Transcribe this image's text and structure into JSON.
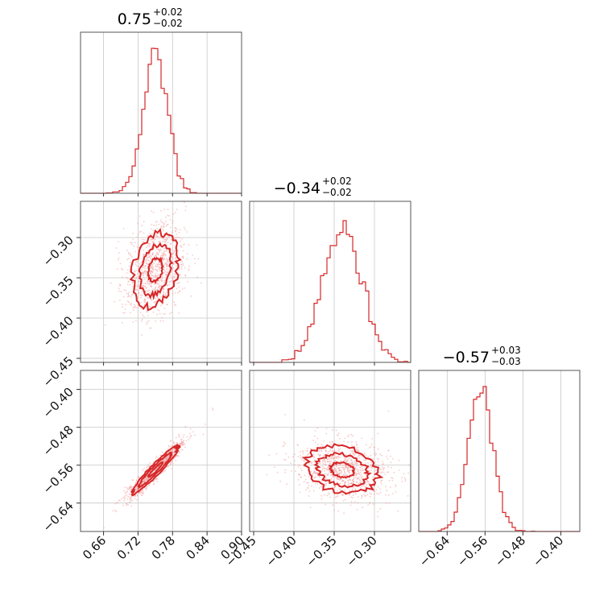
{
  "colors": {
    "accent": "#d62728",
    "contour_fill_outer": "#f7c6c7",
    "contour_fill_mid": "#ee9a9c",
    "contour_fill_inner": "#e25d62",
    "sample_points": "#f2a0a0",
    "grid": "#c8c8c8",
    "frame": "#555555"
  },
  "chart_data": {
    "type": "corner",
    "parameters": [
      {
        "index": 0,
        "median": 0.75,
        "err_plus": 0.02,
        "err_minus": 0.02,
        "title": {
          "value": "0.75",
          "upper": "+0.02",
          "lower": "−0.02"
        },
        "range": [
          0.62,
          0.9
        ],
        "ticks": [
          0.66,
          0.72,
          0.78,
          0.84,
          0.9
        ],
        "tick_labels": [
          "0.66",
          "0.72",
          "0.78",
          "0.84",
          "0.90"
        ],
        "hist_sigma": 0.021,
        "hist_peak_height": 0.9
      },
      {
        "index": 1,
        "median": -0.34,
        "err_plus": 0.02,
        "err_minus": 0.02,
        "title": {
          "value": "−0.34",
          "upper": "+0.02",
          "lower": "−0.02"
        },
        "range": [
          -0.455,
          -0.255
        ],
        "ticks": [
          -0.45,
          -0.4,
          -0.35,
          -0.3
        ],
        "tick_labels": [
          "−0.45",
          "−0.40",
          "−0.35",
          "−0.30"
        ],
        "hist_sigma": 0.024,
        "hist_peak_height": 0.88
      },
      {
        "index": 2,
        "median": -0.57,
        "err_plus": 0.03,
        "err_minus": 0.03,
        "title": {
          "value": "−0.57",
          "upper": "+0.03",
          "lower": "−0.03"
        },
        "range": [
          -0.7,
          -0.36
        ],
        "ticks": [
          -0.64,
          -0.56,
          -0.48,
          -0.4
        ],
        "tick_labels": [
          "−0.64",
          "−0.56",
          "−0.48",
          "−0.40"
        ],
        "hist_sigma": 0.026,
        "hist_peak_height": 0.9
      }
    ],
    "correlations": {
      "0-1": 0.25,
      "0-2": 0.95,
      "1-2": -0.2
    },
    "contour_levels": [
      "1-sigma",
      "2-sigma",
      "3-sigma"
    ],
    "grid": true
  }
}
